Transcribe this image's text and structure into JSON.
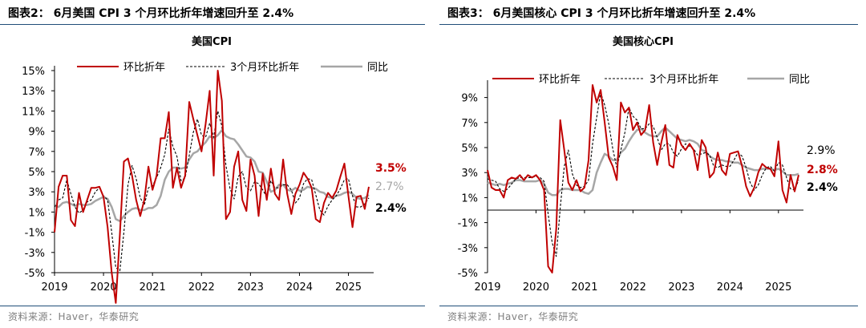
{
  "panels": [
    {
      "figure_title": "图表2： 6月美国 CPI 3 个月环比折年增速回升至 2.4%",
      "source": "资料来源：Haver，华泰研究"
    },
    {
      "figure_title": "图表3： 6月美国核心 CPI 3 个月环比折年增速回升至 2.4%",
      "source": "资料来源：Haver，华泰研究"
    }
  ],
  "colors": {
    "mom": "#c00000",
    "m3": "#000000",
    "yoy": "#a6a6a6",
    "rule": "#1f4e79"
  },
  "chart_data": [
    {
      "type": "line",
      "title": "美国CPI",
      "xlabel": "",
      "ylabel": "",
      "ylim": [
        -5,
        15
      ],
      "y_ticks": [
        "15%",
        "13%",
        "11%",
        "9%",
        "7%",
        "5%",
        "3%",
        "1%",
        "-1%",
        "-3%",
        "-5%"
      ],
      "y_tick_values": [
        15,
        13,
        11,
        9,
        7,
        5,
        3,
        1,
        -1,
        -3,
        -5
      ],
      "x_ticks": [
        "2019",
        "2020",
        "2021",
        "2022",
        "2023",
        "2024",
        "2025"
      ],
      "x_start": "2019-01",
      "x_end": "2025-06",
      "grid": false,
      "legend": "top",
      "series": [
        {
          "name": "环比折年",
          "style": "solid",
          "color": "#c00000",
          "values": [
            -1,
            3.5,
            4.6,
            4.6,
            0.2,
            -0.4,
            2.9,
            1,
            2.2,
            3.4,
            3.4,
            3.5,
            2.5,
            -0.5,
            -5,
            -8,
            -1.2,
            6,
            6.3,
            4.6,
            2.2,
            0.6,
            2.2,
            5.5,
            3.2,
            4.6,
            8.3,
            8.3,
            10.9,
            3.4,
            5.4,
            3.4,
            4.6,
            11.9,
            10.2,
            8.6,
            7,
            9.7,
            13,
            4.6,
            15,
            12,
            0.3,
            1,
            5.5,
            7,
            2.2,
            1.1,
            6.2,
            4.6,
            0.6,
            4.8,
            2.2,
            5.3,
            2.8,
            2.2,
            6.2,
            2.8,
            0.8,
            2.8,
            3.7,
            4.9,
            4.3,
            3.4,
            0.3,
            0,
            1.9,
            2.9,
            2.4,
            3.1,
            4.5,
            5.8,
            2.6,
            -0.5,
            2.5,
            2.6,
            1.3,
            3.5
          ]
        },
        {
          "name": "3个月环比折年",
          "style": "dashed",
          "color": "#000000",
          "values": [
            1.5,
            2.2,
            2.4,
            4.2,
            2.8,
            1.5,
            0.9,
            1.2,
            2,
            2.2,
            3,
            3.4,
            2.6,
            2.2,
            -1,
            -4.5,
            -4.8,
            -1,
            3.7,
            5.6,
            4.3,
            2.4,
            1.7,
            3.4,
            3.6,
            4.4,
            5.4,
            6.7,
            9.2,
            7.5,
            6.5,
            4.1,
            4.4,
            6.6,
            8.9,
            10.2,
            8.6,
            8.4,
            9.8,
            8.4,
            11,
            9.5,
            5.6,
            3.3,
            2.3,
            4.5,
            5,
            3.4,
            3.1,
            4,
            3.8,
            3.2,
            2.5,
            4.1,
            3.4,
            3.4,
            3.7,
            3.7,
            3.2,
            1.9,
            2.4,
            3.8,
            4.3,
            4.2,
            2.7,
            1.2,
            0.7,
            1.6,
            2.2,
            2.6,
            3.3,
            4.2,
            4.3,
            2.6,
            1.5,
            1.5,
            1.8,
            2.4
          ]
        },
        {
          "name": "同比",
          "style": "solid",
          "color": "#a6a6a6",
          "values": [
            1.6,
            1.5,
            1.9,
            2,
            1.8,
            1.6,
            1.8,
            1.7,
            1.7,
            1.8,
            2.1,
            2.3,
            2.5,
            2.3,
            1.5,
            0.3,
            0.1,
            0.6,
            1,
            1.3,
            1.4,
            1.2,
            1.2,
            1.4,
            1.4,
            1.7,
            2.6,
            4.2,
            5,
            5.4,
            5.4,
            5.3,
            5.4,
            6.2,
            6.8,
            7,
            7.5,
            7.9,
            8.5,
            8.3,
            8.6,
            9.1,
            8.5,
            8.3,
            8.2,
            7.7,
            7.1,
            6.5,
            6.4,
            6,
            5,
            4.9,
            4,
            3,
            3.2,
            3.7,
            3.7,
            3.2,
            3.1,
            3.4,
            3.1,
            3.2,
            3.5,
            3.4,
            3.3,
            3,
            2.9,
            2.5,
            2.4,
            2.6,
            2.7,
            2.9,
            3,
            2.8,
            2.4,
            2.3,
            2.4,
            2.7
          ]
        }
      ],
      "end_labels": [
        {
          "text": "3.5%",
          "color": "#c00000"
        },
        {
          "text": "2.7%",
          "color": "#a6a6a6"
        },
        {
          "text": "2.4%",
          "color": "#000000"
        }
      ]
    },
    {
      "type": "line",
      "title": "美国核心CPI",
      "xlabel": "",
      "ylabel": "",
      "ylim": [
        -5,
        10
      ],
      "y_ticks": [
        "9%",
        "7%",
        "5%",
        "3%",
        "1%",
        "-1%",
        "-3%",
        "-5%"
      ],
      "y_tick_values": [
        9,
        7,
        5,
        3,
        1,
        -1,
        -3,
        -5
      ],
      "x_ticks": [
        "2019",
        "2020",
        "2021",
        "2022",
        "2023",
        "2024",
        "2025"
      ],
      "x_start": "2019-01",
      "x_end": "2025-06",
      "grid": false,
      "legend": "top",
      "series": [
        {
          "name": "环比折年",
          "style": "solid",
          "color": "#c00000",
          "values": [
            3.2,
            1.8,
            1.6,
            1.6,
            1,
            2.4,
            2.6,
            2.5,
            2.8,
            2.4,
            2.8,
            2.6,
            2.8,
            2.4,
            1.6,
            -4.5,
            -5,
            -1.5,
            7.2,
            4.8,
            2.2,
            1.6,
            2.4,
            1.5,
            1.8,
            4,
            10,
            8.6,
            9.6,
            7,
            4.2,
            3.5,
            2.4,
            8.6,
            7.8,
            8.2,
            6.4,
            7,
            6,
            6.4,
            8.4,
            5.4,
            3.6,
            5.4,
            6.8,
            3.6,
            3.4,
            6,
            5.2,
            4.8,
            5.3,
            4.8,
            3.2,
            5.6,
            5,
            2.6,
            3,
            4.6,
            3.2,
            2.8,
            4.5,
            4.6,
            4.7,
            3.5,
            1.9,
            1.1,
            1.8,
            3,
            3.7,
            3.4,
            3.3,
            2.7,
            5.5,
            1.6,
            0.6,
            2.8,
            1.5,
            2.8
          ]
        },
        {
          "name": "3个月环比折年",
          "style": "dashed",
          "color": "#000000",
          "values": [
            2.5,
            2.4,
            2.3,
            1.7,
            1.5,
            1.7,
            2.1,
            2.5,
            2.6,
            2.6,
            2.6,
            2.6,
            2.7,
            2.6,
            2.3,
            -0.3,
            -2.6,
            -3.7,
            0.2,
            3.5,
            4.8,
            2.9,
            2,
            1.8,
            1.9,
            2.4,
            5.3,
            7.4,
            9.4,
            8.4,
            6.9,
            4.9,
            3.4,
            4.8,
            6.2,
            8.2,
            7.5,
            7.2,
            6.5,
            6.5,
            6.9,
            6.7,
            5.8,
            4.8,
            5.3,
            5.3,
            4.6,
            4.3,
            4.9,
            5.3,
            5.1,
            4.9,
            4.4,
            4.5,
            4.6,
            4.4,
            3.5,
            3.4,
            3.6,
            3.5,
            3.5,
            4,
            4.6,
            4.3,
            3.4,
            2.2,
            1.6,
            2,
            2.8,
            3.4,
            3.5,
            3.1,
            3.8,
            3.6,
            2.6,
            1.7,
            1.6,
            2.4
          ]
        },
        {
          "name": "同比",
          "style": "solid",
          "color": "#a6a6a6",
          "values": [
            2.2,
            2.1,
            2,
            2.1,
            2,
            2.1,
            2.2,
            2.4,
            2.4,
            2.3,
            2.3,
            2.3,
            2.3,
            2.4,
            2.1,
            1.4,
            1.2,
            1.2,
            1.6,
            1.7,
            1.7,
            1.6,
            1.6,
            1.6,
            1.4,
            1.3,
            1.6,
            3,
            3.8,
            4.5,
            4.3,
            4,
            4,
            4.6,
            4.9,
            5.5,
            6,
            6.4,
            6.5,
            6.2,
            6,
            5.9,
            5.9,
            6.3,
            6.6,
            6.3,
            6,
            5.7,
            5.6,
            5.5,
            5.6,
            5.5,
            5.3,
            4.8,
            4.7,
            4.3,
            4.1,
            4,
            4,
            3.9,
            3.9,
            3.8,
            3.8,
            3.6,
            3.4,
            3.3,
            3.2,
            3.2,
            3.3,
            3.3,
            3.3,
            3.2,
            3.3,
            3.1,
            2.8,
            2.8,
            2.8,
            2.9
          ]
        }
      ],
      "end_labels": [
        {
          "text": "2.9%",
          "color": "#000000"
        },
        {
          "text": "2.8%",
          "color": "#c00000"
        },
        {
          "text": "2.4%",
          "color": "#000000"
        }
      ]
    }
  ]
}
